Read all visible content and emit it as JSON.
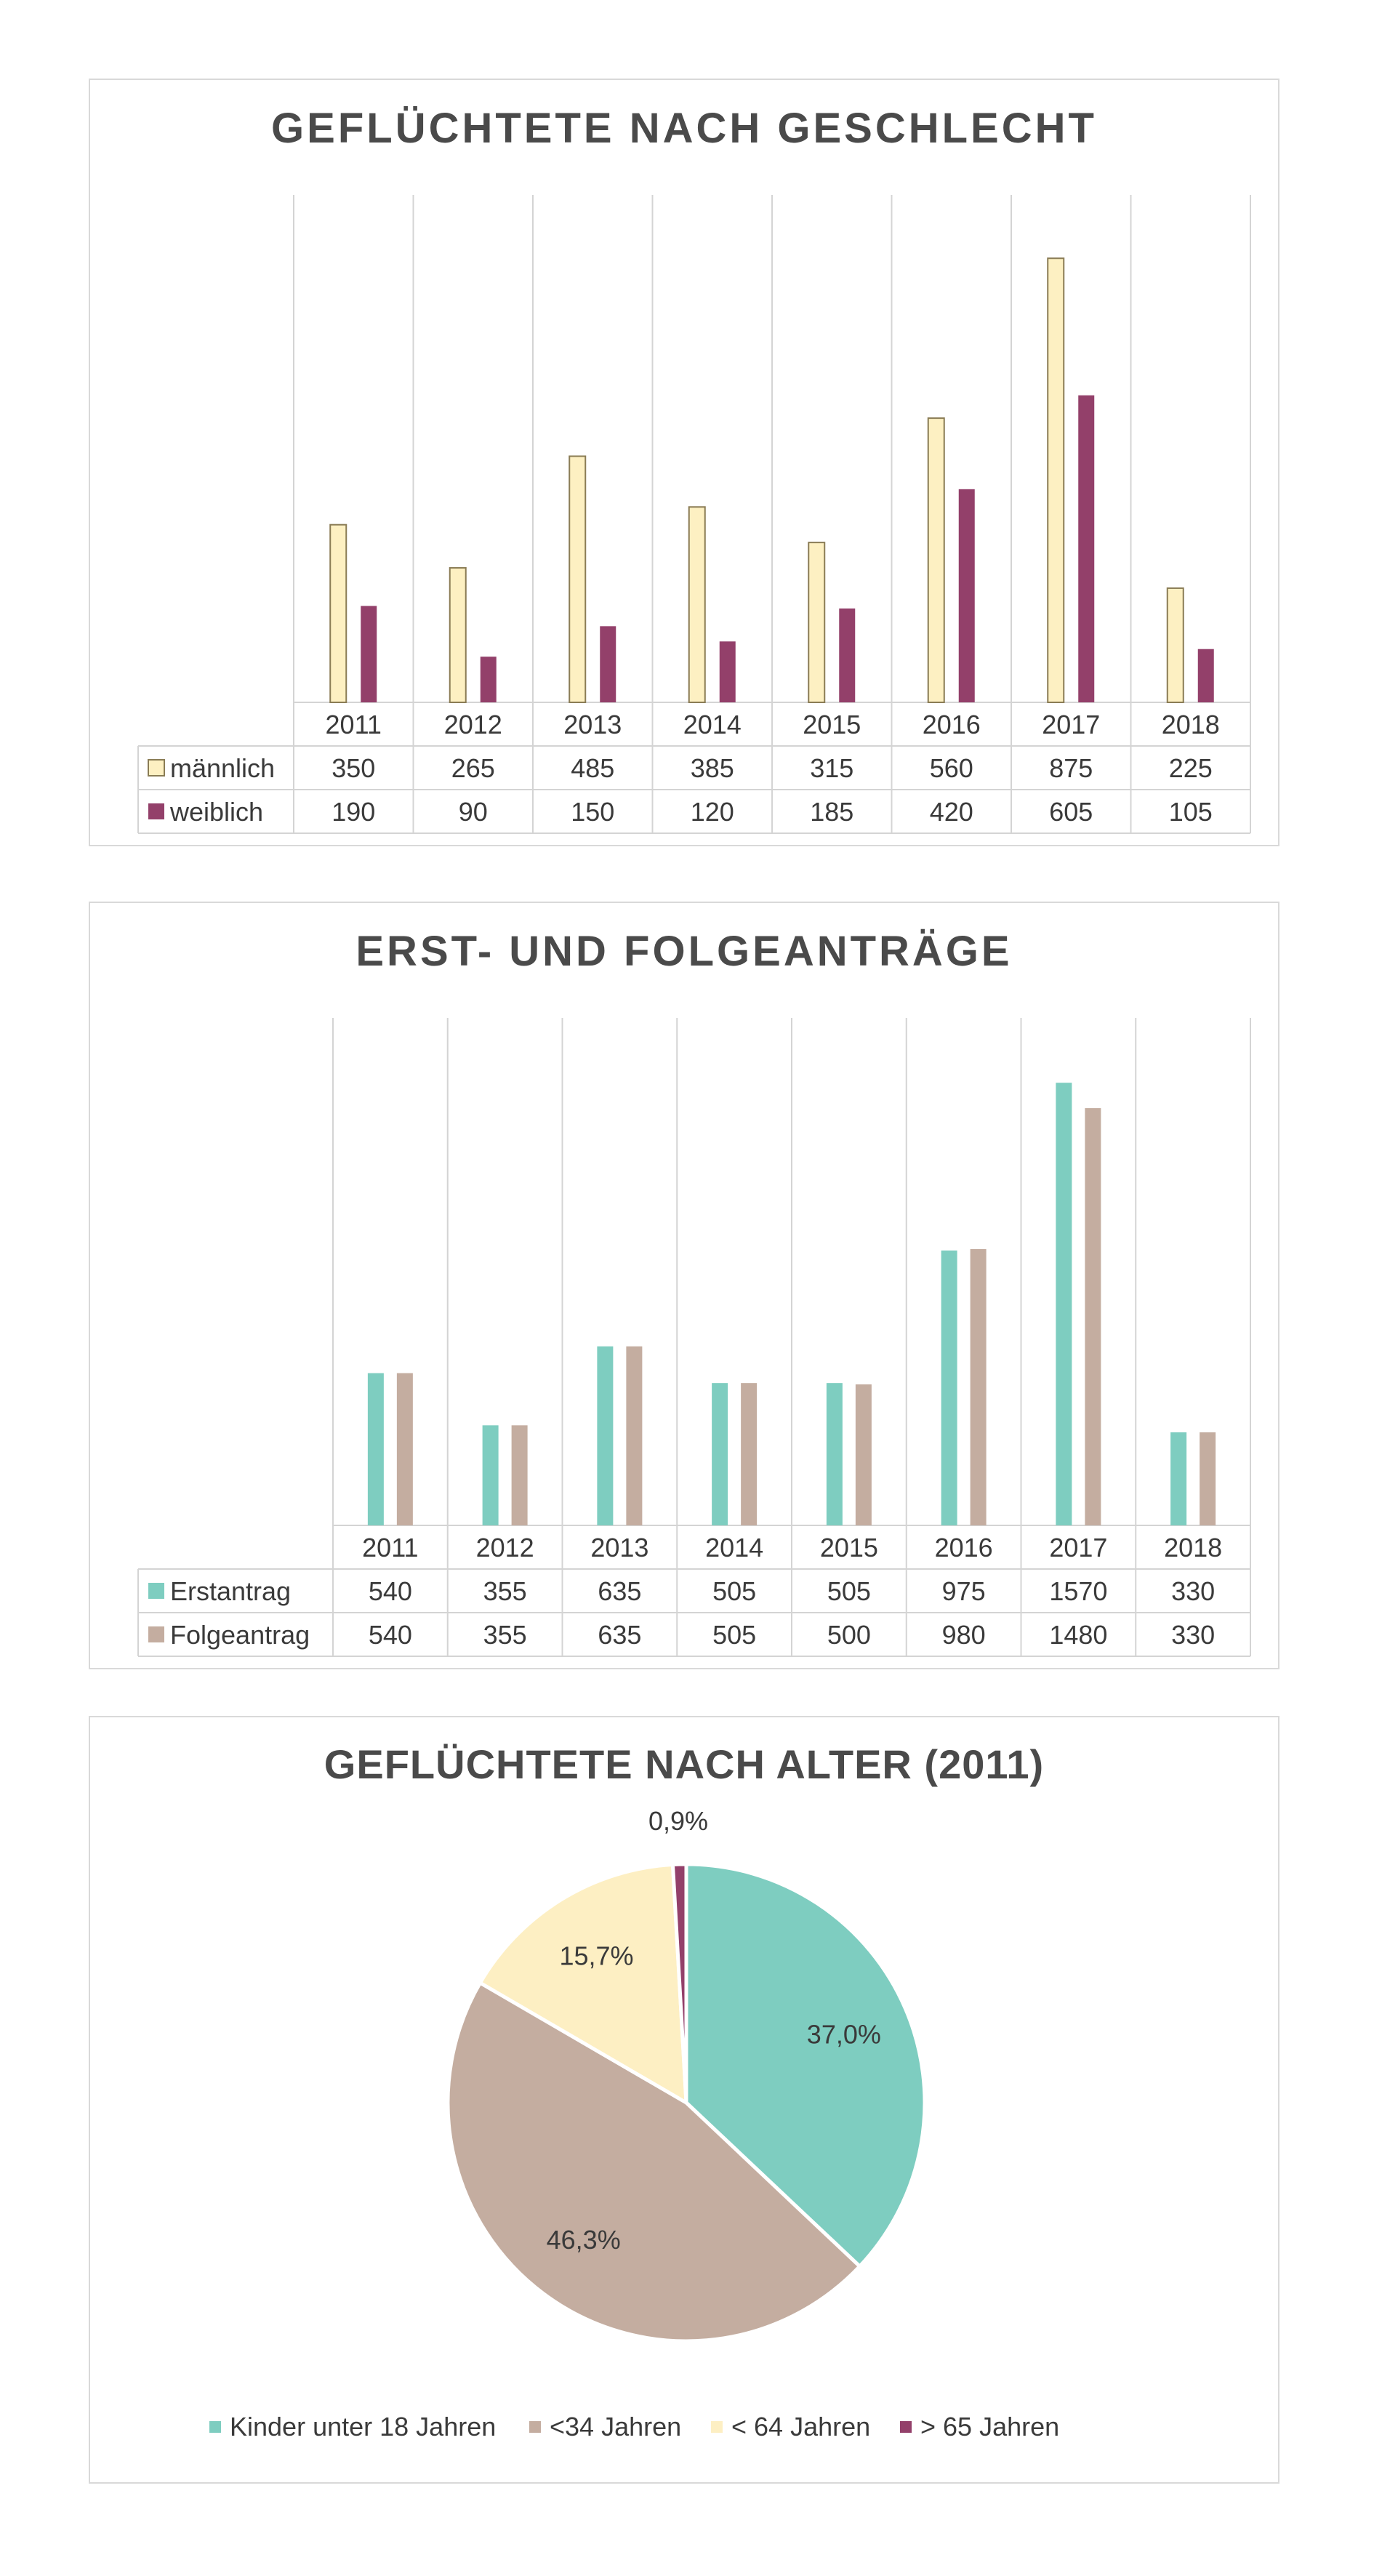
{
  "chart_data": [
    {
      "type": "bar",
      "title": "GEFLÜCHTETE NACH GESCHLECHT",
      "categories": [
        "2011",
        "2012",
        "2013",
        "2014",
        "2015",
        "2016",
        "2017",
        "2018"
      ],
      "series": [
        {
          "name": "männlich",
          "color": "#fdf0c2",
          "border": "#8a7c55",
          "values": [
            350,
            265,
            485,
            385,
            315,
            560,
            875,
            225
          ]
        },
        {
          "name": "weiblich",
          "color": "#93406a",
          "border": "#93406a",
          "values": [
            190,
            90,
            150,
            120,
            185,
            420,
            605,
            105
          ]
        }
      ],
      "ylim": [
        0,
        1000
      ],
      "grid": "vertical",
      "legend": "data-table"
    },
    {
      "type": "bar",
      "title": "ERST- UND FOLGEANTRÄGE",
      "categories": [
        "2011",
        "2012",
        "2013",
        "2014",
        "2015",
        "2016",
        "2017",
        "2018"
      ],
      "series": [
        {
          "name": "Erstantrag",
          "color": "#7ecdc0",
          "border": "#7ecdc0",
          "values": [
            540,
            355,
            635,
            505,
            505,
            975,
            1570,
            330
          ]
        },
        {
          "name": "Folgeantrag",
          "color": "#c4ada0",
          "border": "#c4ada0",
          "values": [
            540,
            355,
            635,
            505,
            500,
            980,
            1480,
            330
          ]
        }
      ],
      "ylim": [
        0,
        1800
      ],
      "grid": "vertical",
      "legend": "data-table"
    },
    {
      "type": "pie",
      "title": "GEFLÜCHTETE NACH ALTER (2011)",
      "slices": [
        {
          "name": "Kinder unter 18 Jahren",
          "value": 37.0,
          "label": "37,0%",
          "color": "#7ecdc0"
        },
        {
          "name": "<34 Jahren",
          "value": 46.3,
          "label": "46,3%",
          "color": "#c4ada0"
        },
        {
          "name": "< 64 Jahren",
          "value": 15.7,
          "label": "15,7%",
          "color": "#fdefc3"
        },
        {
          "name": "> 65 Jahren",
          "value": 0.9,
          "label": "0,9%",
          "color": "#93406a"
        }
      ],
      "legend": "bottom"
    }
  ]
}
